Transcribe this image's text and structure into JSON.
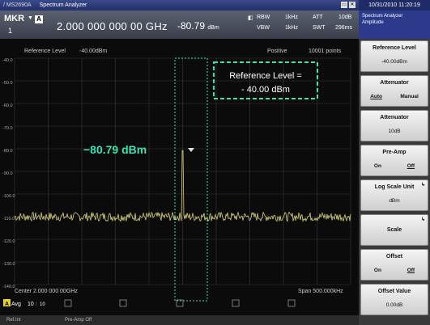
{
  "titlebar": {
    "logo": "/ MS2690A",
    "app": "Spectrum Analyzer",
    "datetime": "10/31/2010 11:20:19"
  },
  "marker": {
    "label": "MKR",
    "number": "1",
    "trace_icon": "A",
    "frequency": "2.000 000 000 00 GHz",
    "level": "-80.79",
    "level_unit": "dBm",
    "rbw_label": "RBW",
    "rbw_value": "1kHz",
    "vbw_label": "VBW",
    "vbw_value": "1kHz",
    "att_label": "ATT",
    "att_value": "10dB",
    "swt_label": "SWT",
    "swt_value": "296ms"
  },
  "graph": {
    "ref_label": "Reference Level",
    "ref_value": "-40.00dBm",
    "detector": "Positive",
    "points": "10001 points",
    "y_ticks": [
      "-40.0",
      "-50.0",
      "-60.0",
      "-70.0",
      "-80.0",
      "-90.0",
      "-100.0",
      "-110.0",
      "-120.0",
      "-130.0",
      "-140.0"
    ],
    "center": "Center 2.000 000 00GHz",
    "span": "Span 500.000kHz",
    "annot_ref_line1": "Reference Level =",
    "annot_ref_line2": "- 40.00 dBm",
    "annot_marker": "−80.79 dBm",
    "avg_label": "Avg",
    "avg_value": "10",
    "avg_slash": "10"
  },
  "statusbar": {
    "left": "Ref.Int",
    "mid": "Pre-Amp Off"
  },
  "softkeys": {
    "header_mode": "Spectrum Analyzer",
    "header_sub": "Amplitude",
    "keys": [
      {
        "title": "Reference Level",
        "value": "-40.00dBm"
      },
      {
        "title": "Attenuator",
        "opt1": "Auto",
        "opt2": "Manual"
      },
      {
        "title": "Attenuator",
        "value": "10dB"
      },
      {
        "title": "Pre-Amp",
        "opt1": "On",
        "opt2": "Off"
      },
      {
        "title": "Log Scale Unit",
        "value": "dBm"
      },
      {
        "title": "Scale"
      },
      {
        "title": "Offset",
        "opt1": "On",
        "opt2": "Off"
      },
      {
        "title": "Offset Value",
        "value": "0.00dB"
      }
    ]
  },
  "colors": {
    "trace": "#d8d080",
    "annotation": "#40e0b0",
    "grid": "#3a3a3a",
    "softkey_header": "#2b3a8a"
  }
}
